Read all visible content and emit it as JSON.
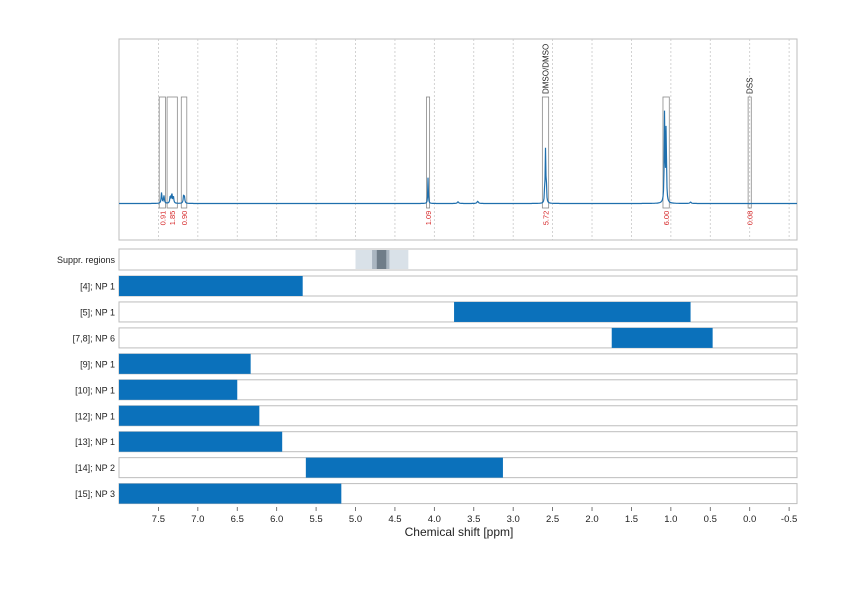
{
  "chart_data": {
    "type": "nmr_spectrum_with_range_bars",
    "xlabel": "Chemical shift [ppm]",
    "xlim": [
      8.0,
      -0.6
    ],
    "xticks": [
      7.5,
      7.0,
      6.5,
      6.0,
      5.5,
      5.0,
      4.5,
      4.0,
      3.5,
      3.0,
      2.5,
      2.0,
      1.5,
      1.0,
      0.5,
      0.0,
      -0.5
    ],
    "xtick_labels": [
      "7.5",
      "7.0",
      "6.5",
      "6.0",
      "5.5",
      "5.0",
      "4.5",
      "4.0",
      "3.5",
      "3.0",
      "2.5",
      "2.0",
      "1.5",
      "1.0",
      "0.5",
      "0.0",
      "-0.5"
    ],
    "spectrum": {
      "color": "#1f6fad",
      "baseline": 0.0,
      "peaks": [
        {
          "ppm": 7.46,
          "height": 0.1,
          "width": 0.006
        },
        {
          "ppm": 7.43,
          "height": 0.07,
          "width": 0.006
        },
        {
          "ppm": 7.35,
          "height": 0.07,
          "width": 0.006
        },
        {
          "ppm": 7.33,
          "height": 0.09,
          "width": 0.006
        },
        {
          "ppm": 7.31,
          "height": 0.06,
          "width": 0.006
        },
        {
          "ppm": 7.18,
          "height": 0.07,
          "width": 0.006
        },
        {
          "ppm": 7.17,
          "height": 0.05,
          "width": 0.006
        },
        {
          "ppm": 4.08,
          "height": 0.24,
          "width": 0.004
        },
        {
          "ppm": 2.6,
          "height": 0.14,
          "width": 0.004
        },
        {
          "ppm": 2.59,
          "height": 0.46,
          "width": 0.004
        },
        {
          "ppm": 2.58,
          "height": 0.2,
          "width": 0.004
        },
        {
          "ppm": 1.08,
          "height": 0.82,
          "width": 0.005
        },
        {
          "ppm": 1.06,
          "height": 0.72,
          "width": 0.005
        },
        {
          "ppm": 3.45,
          "height": 0.02,
          "width": 0.01
        },
        {
          "ppm": 3.7,
          "height": 0.015,
          "width": 0.01
        },
        {
          "ppm": 0.75,
          "height": 0.012,
          "width": 0.01
        }
      ]
    },
    "integral_regions": [
      {
        "from": 7.49,
        "to": 7.41,
        "integral": "0.91"
      },
      {
        "from": 7.39,
        "to": 7.26,
        "integral": "1.85"
      },
      {
        "from": 7.21,
        "to": 7.14,
        "integral": "0.90"
      },
      {
        "from": 4.1,
        "to": 4.06,
        "integral": "1.09"
      },
      {
        "from": 2.63,
        "to": 2.55,
        "integral": "5.72"
      },
      {
        "from": 1.1,
        "to": 1.02,
        "integral": "6.00"
      },
      {
        "from": 0.02,
        "to": -0.02,
        "integral": "0.08"
      }
    ],
    "region_labels": [
      {
        "ppm": 2.59,
        "text": "DMSO/DMSO"
      },
      {
        "ppm": 0.0,
        "text": "DSS"
      }
    ],
    "suppression": {
      "label": "Suppr. regions",
      "outer": [
        5.0,
        4.33
      ],
      "middle": [
        4.79,
        4.57
      ],
      "inner": [
        4.73,
        4.61
      ],
      "colors": [
        "#d9e1e8",
        "#aab6c1",
        "#6f7d89"
      ]
    },
    "range_rows": [
      {
        "label": "[4]; NP 1",
        "from": 8.0,
        "to": 5.67
      },
      {
        "label": "[5]; NP 1",
        "from": 3.75,
        "to": 0.75
      },
      {
        "label": "[7,8]; NP 6",
        "from": 1.75,
        "to": 0.47
      },
      {
        "label": "[9]; NP 1",
        "from": 8.0,
        "to": 6.33
      },
      {
        "label": "[10]; NP 1",
        "from": 8.0,
        "to": 6.5
      },
      {
        "label": "[12]; NP 1",
        "from": 8.0,
        "to": 6.22
      },
      {
        "label": "[13]; NP 1",
        "from": 8.0,
        "to": 5.93
      },
      {
        "label": "[14]; NP 2",
        "from": 5.63,
        "to": 3.13
      },
      {
        "label": "[15]; NP 3",
        "from": 8.0,
        "to": 5.18
      }
    ],
    "bar_color": "#0b71bb",
    "integral_label_color": "#d62728"
  }
}
